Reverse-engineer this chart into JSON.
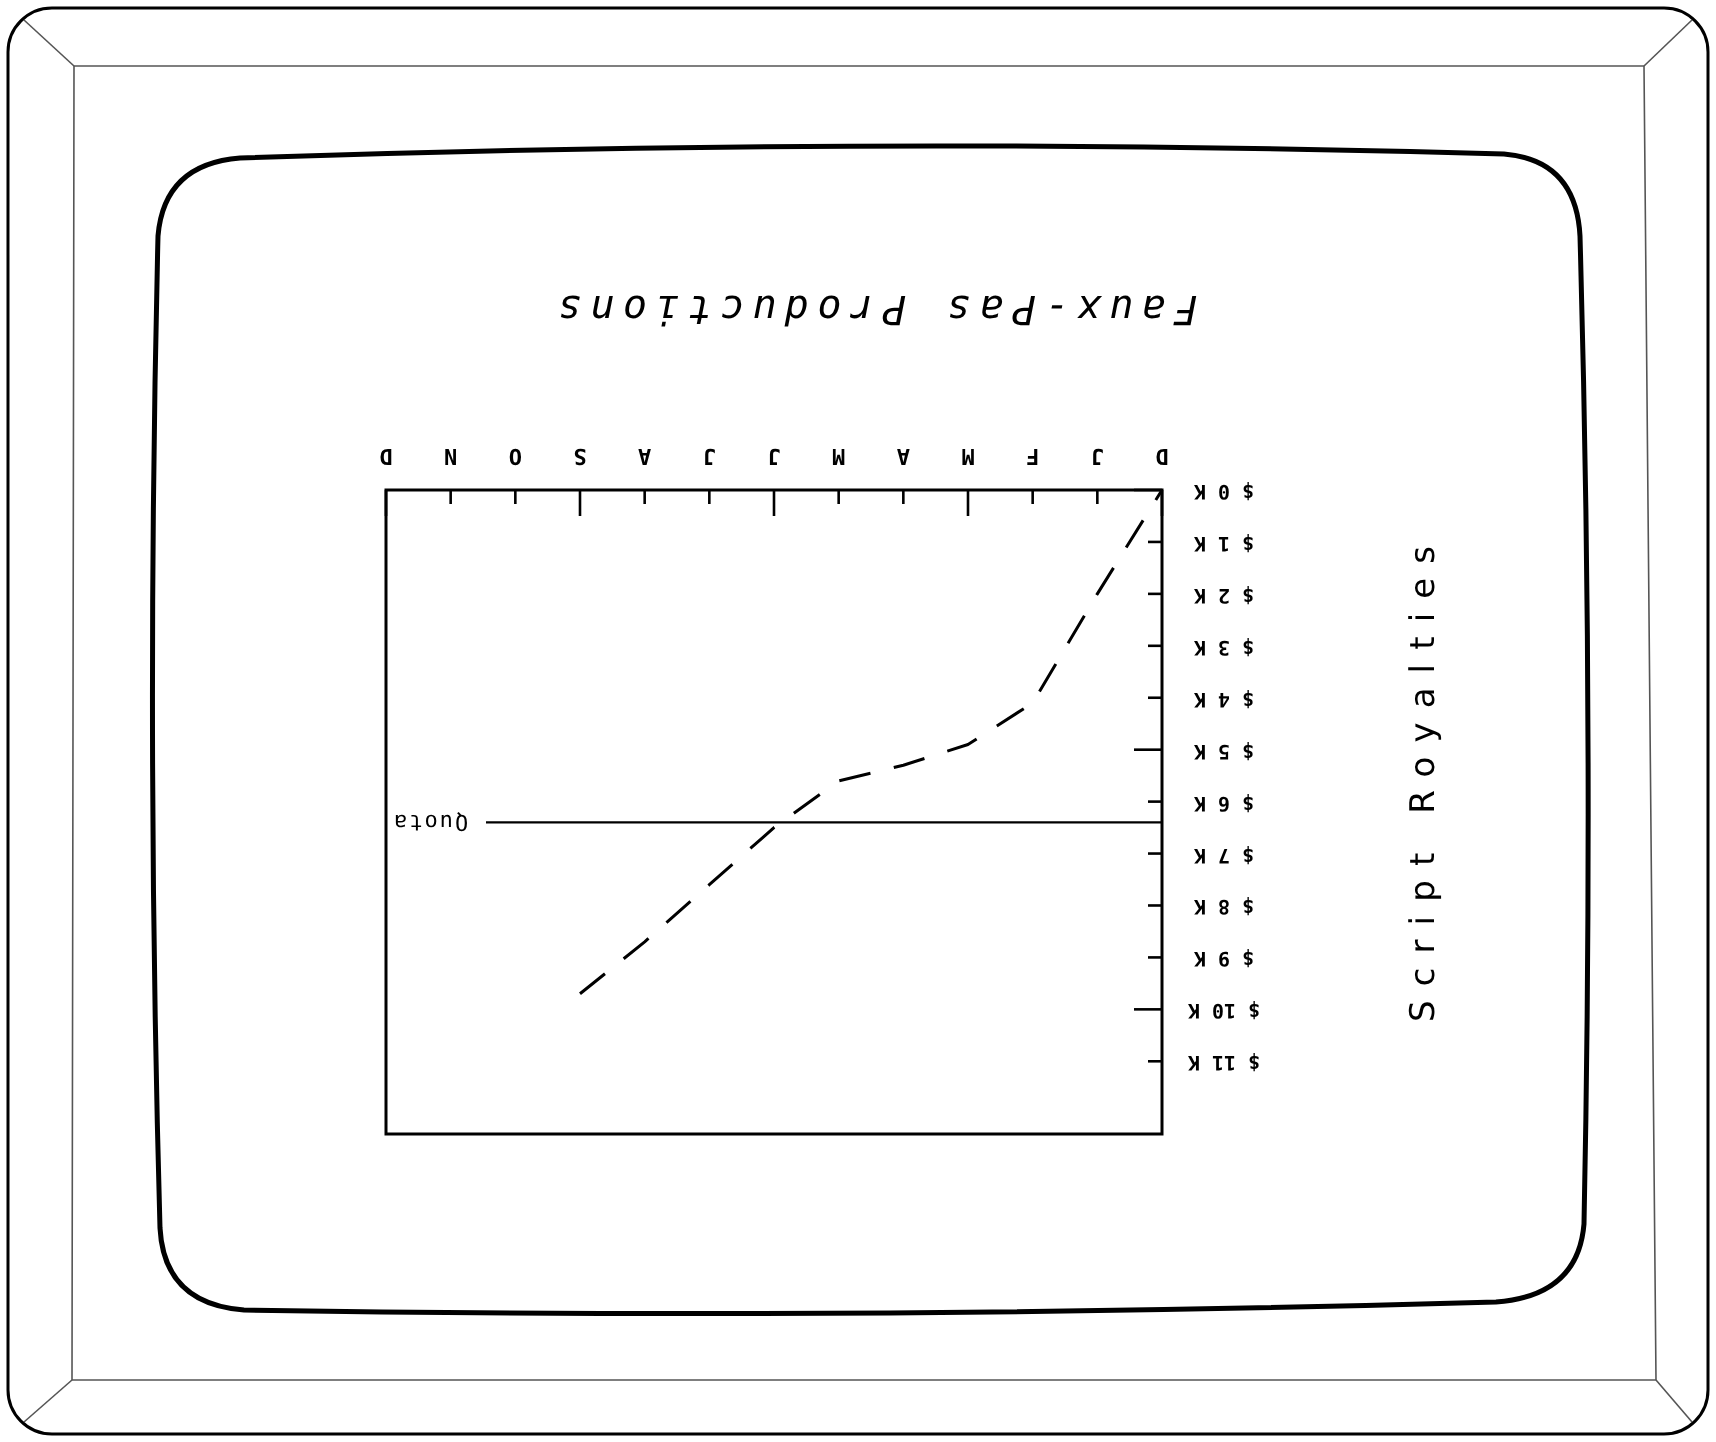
{
  "chart_data": {
    "type": "line",
    "title": "Faux-Pas Productions",
    "ylabel": "Script Royalties",
    "categories": [
      "D",
      "N",
      "O",
      "S",
      "A",
      "J",
      "J",
      "M",
      "A",
      "M",
      "F",
      "J",
      "D"
    ],
    "values": [
      null,
      null,
      null,
      9.7,
      8.7,
      7.6,
      6.5,
      5.6,
      5.3,
      4.9,
      4.1,
      2.0,
      0
    ],
    "color": "#000000",
    "line_style": "dashed",
    "ylim": [
      12.4,
      0
    ],
    "yticks": [
      {
        "value": 0,
        "label": "$ 0 K"
      },
      {
        "value": 1,
        "label": "$ 1 K"
      },
      {
        "value": 2,
        "label": "$ 2 K"
      },
      {
        "value": 3,
        "label": "$ 3 K"
      },
      {
        "value": 4,
        "label": "$ 4 K"
      },
      {
        "value": 5,
        "label": "$ 5 K"
      },
      {
        "value": 6,
        "label": "$ 6 K"
      },
      {
        "value": 7,
        "label": "$ 7 K"
      },
      {
        "value": 8,
        "label": "$ 8 K"
      },
      {
        "value": 9,
        "label": "$ 9 K"
      },
      {
        "value": 10,
        "label": "$ 10 K"
      },
      {
        "value": 11,
        "label": "$ 11 K"
      }
    ],
    "ref_lines": [
      {
        "axis": "y",
        "value": 6.4,
        "label": "Quota"
      }
    ]
  }
}
